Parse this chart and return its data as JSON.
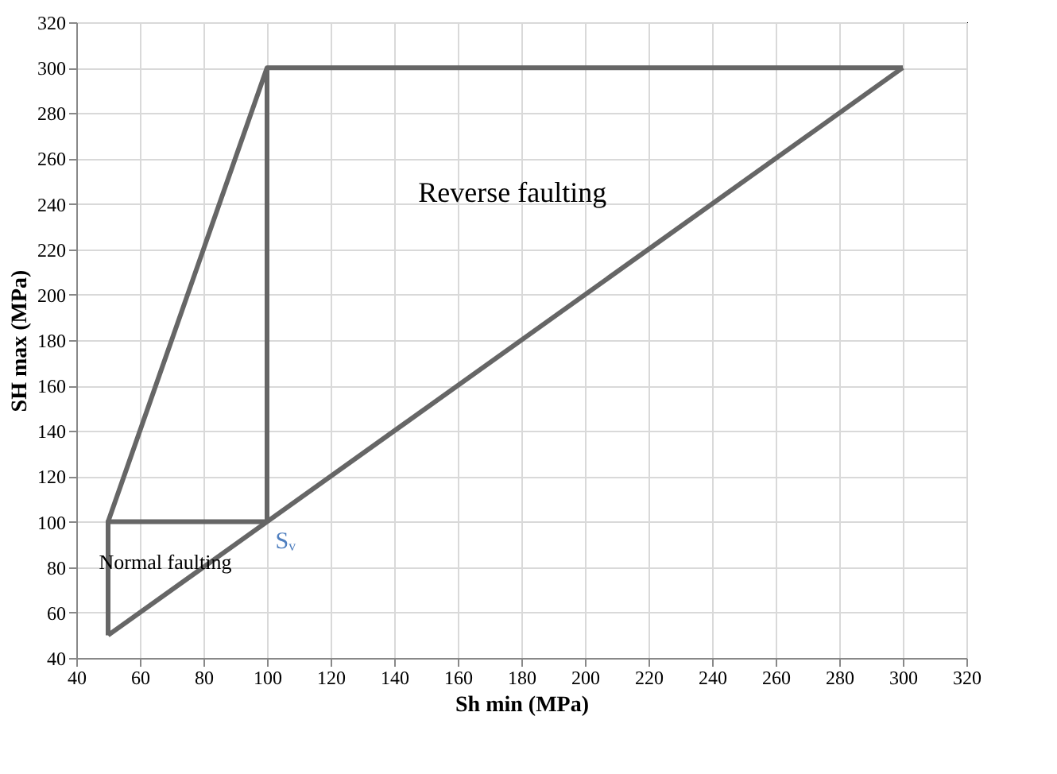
{
  "chart_data": {
    "type": "line",
    "xlabel": "Sh min (MPa)",
    "ylabel": "SH max (MPa)",
    "series": [
      {
        "color": "#666666",
        "x": [
          50,
          300
        ],
        "values": [
          50,
          300
        ]
      },
      {
        "color": "#666666",
        "x": [
          50,
          50,
          100
        ],
        "values": [
          50,
          100,
          100
        ]
      },
      {
        "color": "#666666",
        "x": [
          50,
          100,
          300
        ],
        "values": [
          100,
          300,
          300
        ]
      },
      {
        "color": "#666666",
        "x": [
          100,
          100
        ],
        "values": [
          100,
          300
        ]
      }
    ],
    "xlim": [
      40,
      320
    ],
    "ylim": [
      40,
      320
    ],
    "xticks": [
      40,
      60,
      80,
      100,
      120,
      140,
      160,
      180,
      200,
      220,
      240,
      260,
      280,
      300,
      320
    ],
    "yticks": [
      40,
      60,
      80,
      100,
      120,
      140,
      160,
      180,
      200,
      220,
      240,
      260,
      280,
      300,
      320
    ],
    "grid": true,
    "marker": "none",
    "line_style": "solid",
    "annotations": [
      "Reverse faulting",
      "Normal faulting",
      "Sᵥ"
    ]
  }
}
